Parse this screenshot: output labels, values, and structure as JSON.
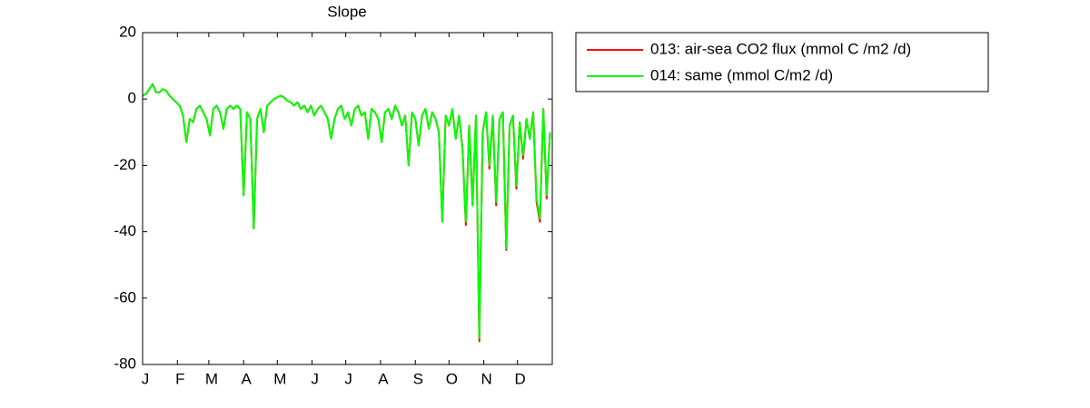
{
  "chart_data": {
    "type": "line",
    "title": "Slope",
    "x": [
      1,
      4,
      7,
      10,
      13,
      16,
      19,
      22,
      25,
      28,
      31,
      34,
      37,
      40,
      43,
      46,
      49,
      52,
      55,
      58,
      61,
      64,
      67,
      70,
      73,
      76,
      79,
      82,
      85,
      88,
      91,
      94,
      97,
      100,
      103,
      106,
      109,
      112,
      115,
      118,
      121,
      124,
      127,
      130,
      133,
      136,
      139,
      142,
      145,
      148,
      151,
      154,
      157,
      160,
      163,
      166,
      169,
      172,
      175,
      178,
      181,
      184,
      187,
      190,
      193,
      196,
      199,
      202,
      205,
      208,
      211,
      214,
      217,
      220,
      223,
      226,
      229,
      232,
      235,
      238,
      241,
      244,
      247,
      250,
      253,
      256,
      259,
      262,
      265,
      268,
      271,
      274,
      277,
      280,
      283,
      286,
      289,
      292,
      295,
      298,
      301,
      304,
      307,
      310,
      313,
      316,
      319,
      322,
      325,
      328,
      331,
      334,
      337,
      340,
      343,
      346,
      349,
      352,
      355,
      358,
      361,
      364
    ],
    "series": [
      {
        "name": "013: air-sea CO2 flux (mmol C /m2 /d)",
        "color": "#ff0000",
        "values": [
          1,
          1.5,
          3,
          4.5,
          2,
          2,
          3,
          2.5,
          1,
          0,
          -1,
          -2,
          -5,
          -13,
          -6,
          -7,
          -3,
          -2,
          -4,
          -6,
          -11,
          -3,
          -2,
          -4,
          -9,
          -3,
          -2,
          -3,
          -2,
          -3,
          -29,
          -4,
          -6,
          -39,
          -6,
          -3,
          -10,
          -2,
          -1,
          0,
          0.5,
          1,
          0.5,
          -0.5,
          -1,
          -2,
          -1,
          -3,
          -2,
          -4,
          -2,
          -5,
          -3,
          -2,
          -4,
          -6,
          -12,
          -6,
          -3,
          -2,
          -6,
          -4,
          -8,
          -3,
          -2,
          -5,
          -4,
          -12,
          -3,
          -4,
          -6,
          -13,
          -4,
          -3,
          -6,
          -2,
          -4,
          -8,
          -5,
          -20,
          -4,
          -6,
          -14,
          -5,
          -3,
          -9,
          -4,
          -6,
          -10,
          -37,
          -5,
          -8,
          -3,
          -12,
          -5,
          -15,
          -38,
          -8,
          -32,
          -5,
          -73,
          -10,
          -4,
          -21,
          -5,
          -32,
          -6,
          -4,
          -45.5,
          -8,
          -5,
          -27,
          -7,
          -18,
          -6,
          -12,
          -4,
          -31,
          -37,
          -3,
          -30,
          -10
        ]
      },
      {
        "name": "014: same (mmol C/m2 /d)",
        "color": "#00ff00",
        "values": [
          1,
          1.5,
          3,
          4.5,
          2,
          2,
          3,
          2.5,
          1,
          0,
          -1,
          -2,
          -5,
          -13,
          -6,
          -7,
          -3,
          -2,
          -4,
          -6,
          -11,
          -3,
          -2,
          -4,
          -9,
          -3,
          -2,
          -3,
          -2,
          -3,
          -29,
          -4,
          -6,
          -39,
          -6,
          -3,
          -10,
          -2,
          -1,
          0,
          0.5,
          1,
          0.5,
          -0.5,
          -1,
          -2,
          -1,
          -3,
          -2,
          -4,
          -2,
          -5,
          -3,
          -2,
          -4,
          -6,
          -12,
          -6,
          -3,
          -2,
          -6,
          -4,
          -8,
          -3,
          -2,
          -5,
          -4,
          -12,
          -3,
          -4,
          -6,
          -13,
          -4,
          -3,
          -6,
          -2,
          -4,
          -8,
          -5,
          -20,
          -4,
          -6,
          -14,
          -5,
          -3,
          -9,
          -4,
          -6,
          -10,
          -37,
          -5,
          -8,
          -3,
          -12,
          -5,
          -15,
          -37,
          -8,
          -32,
          -5,
          -72,
          -10,
          -4,
          -20,
          -5,
          -31,
          -6,
          -4,
          -45,
          -8,
          -5,
          -26,
          -7,
          -17,
          -6,
          -12,
          -4,
          -30,
          -36,
          -3,
          -29,
          -10
        ]
      }
    ],
    "xlim": [
      1,
      366
    ],
    "xticks": [
      {
        "value": 1,
        "label": "J"
      },
      {
        "value": 32,
        "label": "F"
      },
      {
        "value": 60,
        "label": "M"
      },
      {
        "value": 91,
        "label": "A"
      },
      {
        "value": 121,
        "label": "M"
      },
      {
        "value": 152,
        "label": "J"
      },
      {
        "value": 182,
        "label": "J"
      },
      {
        "value": 213,
        "label": "A"
      },
      {
        "value": 244,
        "label": "S"
      },
      {
        "value": 274,
        "label": "O"
      },
      {
        "value": 305,
        "label": "N"
      },
      {
        "value": 335,
        "label": "D"
      }
    ],
    "ylim": [
      -80,
      20
    ],
    "yticks": [
      -80,
      -60,
      -40,
      -20,
      0,
      20
    ],
    "legend": "outside-right"
  }
}
